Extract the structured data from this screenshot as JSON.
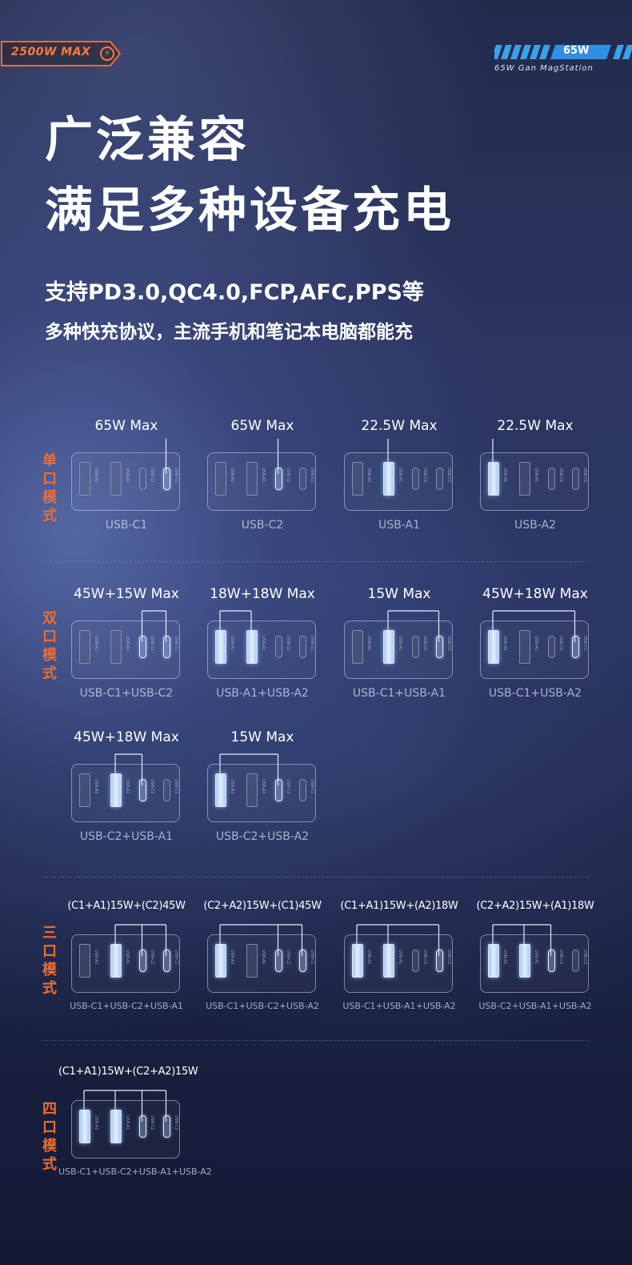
{
  "header": {
    "left_badge": "2500W MAX",
    "right_badge_power": "65W",
    "right_badge_subtitle": "65W Gan MagStation"
  },
  "headline": [
    "广泛兼容",
    "满足多种设备充电"
  ],
  "subheadline": [
    "支持PD3.0,QC4.0,FCP,AFC,PPS等",
    "多种快充协议，主流手机和笔记本电脑都能充"
  ],
  "port_labels": {
    "A2": "USB-A2",
    "A1": "USB-A1",
    "C2": "USB-C2",
    "C1": "USB-C1"
  },
  "modes": [
    {
      "label": [
        "单",
        "口",
        "模",
        "式"
      ],
      "cards": [
        {
          "watt": "65W Max",
          "caption": "USB-C1",
          "active": [
            "C1"
          ]
        },
        {
          "watt": "65W Max",
          "caption": "USB-C2",
          "active": [
            "C2"
          ]
        },
        {
          "watt": "22.5W Max",
          "caption": "USB-A1",
          "active": [
            "A1"
          ]
        },
        {
          "watt": "22.5W Max",
          "caption": "USB-A2",
          "active": [
            "A2"
          ]
        }
      ]
    },
    {
      "label": [
        "双",
        "口",
        "模",
        "式"
      ],
      "cards": [
        {
          "watt": "45W+15W Max",
          "caption": "USB-C1+USB-C2",
          "active": [
            "C2",
            "C1"
          ]
        },
        {
          "watt": "18W+18W Max",
          "caption": "USB-A1+USB-A2",
          "active": [
            "A2",
            "A1"
          ]
        },
        {
          "watt": "15W Max",
          "caption": "USB-C1+USB-A1",
          "active": [
            "A1",
            "C1"
          ]
        },
        {
          "watt": "45W+18W Max",
          "caption": "USB-C1+USB-A2",
          "active": [
            "A2",
            "C1"
          ]
        },
        {
          "watt": "45W+18W Max",
          "caption": "USB-C2+USB-A1",
          "active": [
            "A1",
            "C2"
          ]
        },
        {
          "watt": "15W Max",
          "caption": "USB-C2+USB-A2",
          "active": [
            "A2",
            "C2"
          ]
        }
      ]
    },
    {
      "label": [
        "三",
        "口",
        "模",
        "式"
      ],
      "cards": [
        {
          "watt": "(C1+A1)15W+(C2)45W",
          "caption": "USB-C1+USB-C2+USB-A1",
          "active": [
            "A1",
            "C2",
            "C1"
          ]
        },
        {
          "watt": "(C2+A2)15W+(C1)45W",
          "caption": "USB-C1+USB-C2+USB-A2",
          "active": [
            "A2",
            "C2",
            "C1"
          ]
        },
        {
          "watt": "(C1+A1)15W+(A2)18W",
          "caption": "USB-C1+USB-A1+USB-A2",
          "active": [
            "A2",
            "A1",
            "C1"
          ]
        },
        {
          "watt": "(C2+A2)15W+(A1)18W",
          "caption": "USB-C2+USB-A1+USB-A2",
          "active": [
            "A2",
            "A1",
            "C2"
          ]
        }
      ]
    },
    {
      "label": [
        "四",
        "口",
        "模",
        "式"
      ],
      "cards": [
        {
          "watt": "(C1+A1)15W+(C2+A2)15W",
          "caption": "USB-C1+USB-C2+USB-A1+USB-A2",
          "active": [
            "A2",
            "A1",
            "C2",
            "C1"
          ]
        }
      ]
    }
  ],
  "colors": {
    "accent": "#f26b2c",
    "badge_blue": "#3aa0ea",
    "glow_port": "#d8e8ff"
  }
}
